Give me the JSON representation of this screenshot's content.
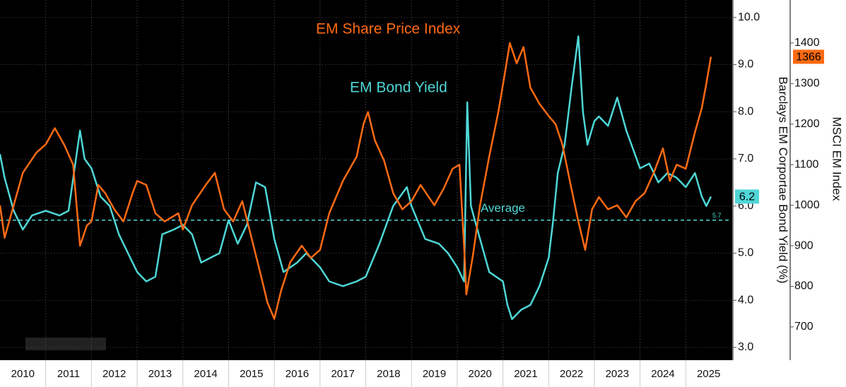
{
  "chart_data": {
    "type": "line",
    "categories": [
      "2010",
      "2011",
      "2012",
      "2013",
      "2014",
      "2015",
      "2016",
      "2017",
      "2018",
      "2019",
      "2020",
      "2021",
      "2022",
      "2023",
      "2024",
      "2025"
    ],
    "xlim": [
      2010,
      2026
    ],
    "ylim": [
      2.73,
      10.37
    ],
    "yticks": [
      {
        "value": 3,
        "label": "3.0"
      },
      {
        "value": 4,
        "label": "4.0"
      },
      {
        "value": 5,
        "label": "5.0"
      },
      {
        "value": 6,
        "label": "6.0"
      },
      {
        "value": 7,
        "label": "7.0"
      },
      {
        "value": 8,
        "label": "8.0"
      },
      {
        "value": 9,
        "label": "9.0"
      },
      {
        "value": 10,
        "label": "10.0"
      }
    ],
    "ylabel": "Barclays EM Corportae Bond Yield (%)",
    "y2lim": [
      618,
      1506
    ],
    "y2ticks": [
      700,
      800,
      900,
      1000,
      1100,
      1200,
      1300,
      1400
    ],
    "y2label": "MSCI EM Index",
    "grid": true,
    "series": [
      {
        "name": "EM Bond Yield",
        "color": "#4fd6d6",
        "axis": "y",
        "x": [
          2010.0,
          2010.1,
          2010.3,
          2010.5,
          2010.7,
          2011.0,
          2011.3,
          2011.5,
          2011.75,
          2011.85,
          2012.0,
          2012.2,
          2012.4,
          2012.6,
          2012.8,
          2013.0,
          2013.2,
          2013.4,
          2013.55,
          2013.8,
          2014.0,
          2014.2,
          2014.4,
          2014.6,
          2014.8,
          2015.0,
          2015.2,
          2015.4,
          2015.6,
          2015.8,
          2016.0,
          2016.2,
          2016.5,
          2016.7,
          2017.0,
          2017.2,
          2017.5,
          2017.8,
          2018.0,
          2018.3,
          2018.6,
          2018.9,
          2019.0,
          2019.3,
          2019.6,
          2019.8,
          2020.0,
          2020.15,
          2020.22,
          2020.3,
          2020.5,
          2020.7,
          2021.0,
          2021.1,
          2021.2,
          2021.4,
          2021.6,
          2021.8,
          2022.0,
          2022.1,
          2022.2,
          2022.35,
          2022.5,
          2022.65,
          2022.75,
          2022.85,
          2023.0,
          2023.1,
          2023.3,
          2023.5,
          2023.7,
          2023.85,
          2024.0,
          2024.2,
          2024.4,
          2024.6,
          2024.8,
          2025.0,
          2025.2,
          2025.35,
          2025.45,
          2025.55
        ],
        "values": [
          7.1,
          6.6,
          5.9,
          5.5,
          5.8,
          5.9,
          5.8,
          5.9,
          7.6,
          7.0,
          6.8,
          6.2,
          6.0,
          5.4,
          5.0,
          4.6,
          4.4,
          4.5,
          5.4,
          5.5,
          5.6,
          5.4,
          4.8,
          4.9,
          5.0,
          5.7,
          5.2,
          5.6,
          6.5,
          6.4,
          5.3,
          4.6,
          4.8,
          5.0,
          4.7,
          4.4,
          4.3,
          4.4,
          4.5,
          5.2,
          6.0,
          6.4,
          6.0,
          5.3,
          5.2,
          5.0,
          4.7,
          4.4,
          8.2,
          6.0,
          5.3,
          4.6,
          4.4,
          3.9,
          3.6,
          3.8,
          3.9,
          4.3,
          4.9,
          5.7,
          6.7,
          7.3,
          8.5,
          9.6,
          8.0,
          7.3,
          7.8,
          7.9,
          7.7,
          8.3,
          7.6,
          7.2,
          6.8,
          6.9,
          6.5,
          6.7,
          6.6,
          6.4,
          6.7,
          6.2,
          6.0,
          6.2
        ]
      },
      {
        "name": "EM Share Price Index",
        "color": "#ff6a13",
        "axis": "y2",
        "x": [
          2010.0,
          2010.1,
          2010.3,
          2010.5,
          2010.8,
          2011.0,
          2011.2,
          2011.4,
          2011.6,
          2011.75,
          2011.9,
          2012.0,
          2012.15,
          2012.3,
          2012.5,
          2012.7,
          2012.9,
          2013.0,
          2013.2,
          2013.4,
          2013.6,
          2013.9,
          2014.0,
          2014.2,
          2014.5,
          2014.7,
          2014.9,
          2015.1,
          2015.3,
          2015.5,
          2015.7,
          2015.85,
          2016.0,
          2016.15,
          2016.35,
          2016.6,
          2016.8,
          2017.0,
          2017.2,
          2017.5,
          2017.8,
          2017.95,
          2018.05,
          2018.2,
          2018.4,
          2018.6,
          2018.8,
          2019.0,
          2019.2,
          2019.5,
          2019.7,
          2019.9,
          2020.05,
          2020.15,
          2020.2,
          2020.35,
          2020.5,
          2020.7,
          2020.9,
          2021.05,
          2021.15,
          2021.3,
          2021.45,
          2021.6,
          2021.8,
          2022.0,
          2022.15,
          2022.3,
          2022.5,
          2022.65,
          2022.8,
          2022.95,
          2023.1,
          2023.3,
          2023.5,
          2023.7,
          2023.9,
          2024.1,
          2024.3,
          2024.5,
          2024.65,
          2024.8,
          2025.0,
          2025.2,
          2025.35,
          2025.45,
          2025.55
        ],
        "values": [
          1000,
          920,
          1000,
          1080,
          1130,
          1150,
          1190,
          1150,
          1100,
          900,
          950,
          960,
          1050,
          1030,
          990,
          960,
          1030,
          1060,
          1050,
          980,
          960,
          980,
          940,
          1000,
          1050,
          1080,
          990,
          960,
          1010,
          920,
          830,
          760,
          720,
          790,
          860,
          900,
          870,
          890,
          980,
          1060,
          1120,
          1200,
          1230,
          1160,
          1110,
          1030,
          990,
          1010,
          1050,
          1000,
          1040,
          1090,
          1100,
          900,
          780,
          880,
          1000,
          1120,
          1230,
          1330,
          1400,
          1350,
          1390,
          1290,
          1250,
          1220,
          1200,
          1150,
          1040,
          960,
          890,
          990,
          1020,
          990,
          1000,
          970,
          1010,
          1030,
          1080,
          1140,
          1060,
          1100,
          1090,
          1180,
          1240,
          1300,
          1366
        ]
      }
    ],
    "average": {
      "text": "Average",
      "value": 5.7
    }
  }
}
